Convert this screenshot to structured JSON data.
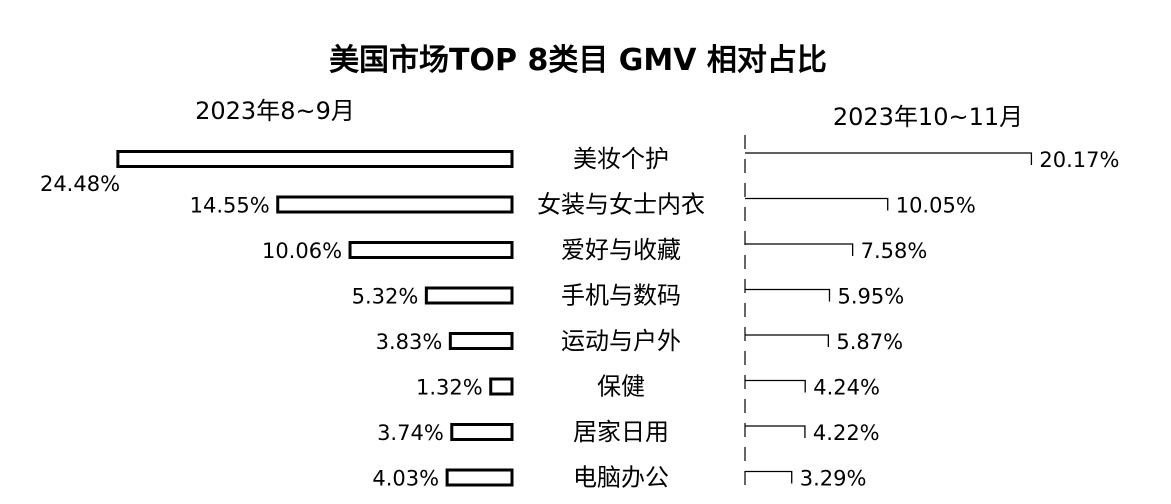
{
  "chart_data": {
    "type": "bar",
    "title": "美国市场TOP 8类目 GMV 相对占比",
    "categories": [
      "美妆个护",
      "女装与女士内衣",
      "爱好与收藏",
      "手机与数码",
      "运动与户外",
      "保健",
      "居家日用",
      "电脑办公"
    ],
    "series": [
      {
        "name": "2023年8~9月",
        "values": [
          24.48,
          14.55,
          10.06,
          5.32,
          3.83,
          1.32,
          3.74,
          4.03
        ],
        "labels": [
          "24.48%",
          "14.55%",
          "10.06%",
          "5.32%",
          "3.83%",
          "1.32%",
          "3.74%",
          "4.03%"
        ]
      },
      {
        "name": "2023年10~11月",
        "values": [
          20.17,
          10.05,
          7.58,
          5.95,
          5.87,
          4.24,
          4.22,
          3.29
        ],
        "labels": [
          "20.17%",
          "10.05%",
          "7.58%",
          "5.95%",
          "5.87%",
          "4.24%",
          "4.22%",
          "3.29%"
        ]
      }
    ],
    "unit": "%",
    "layout": "diverging (left and right of central category labels)",
    "grid": false
  },
  "colors": {
    "bar_fill": "#ffffff",
    "bar_stroke": "#000000",
    "text": "#000000",
    "background": "#ffffff"
  }
}
